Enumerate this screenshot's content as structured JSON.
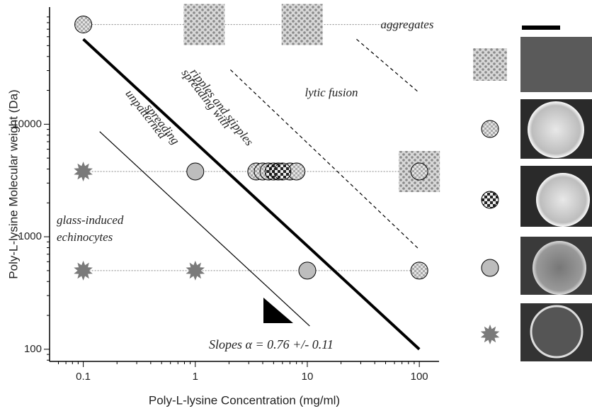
{
  "chart_data": {
    "type": "scatter",
    "x_label": "Poly-L-lysine Concentration (mg/ml)",
    "y_label": "Poly-L-lysine Molecular weight (Da)",
    "xscale": "log",
    "yscale": "log",
    "xlim": [
      0.05,
      150
    ],
    "ylim": [
      78,
      110000
    ],
    "xticks": [
      0.1,
      1,
      10,
      100
    ],
    "yticks": [
      100,
      1000,
      10000
    ],
    "guides": [
      77000,
      3800,
      500
    ],
    "series": [
      {
        "marker": "aggregate-square",
        "color": "#9a9a9a",
        "x": [
          1.2,
          9,
          100
        ],
        "values": [
          77000,
          77000,
          3800
        ]
      },
      {
        "marker": "stipple-circle",
        "color": "#c8c8c8",
        "x": [
          0.1,
          3.5,
          4,
          4.5,
          7,
          8,
          100,
          100
        ],
        "values": [
          77000,
          3800,
          3800,
          3800,
          3800,
          3800,
          3800,
          500
        ]
      },
      {
        "marker": "ripple-circle",
        "color": "#333333",
        "x": [
          5,
          5.5,
          6
        ],
        "values": [
          3800,
          3800,
          3800
        ]
      },
      {
        "marker": "plain-circle",
        "color": "#bdbdbd",
        "x": [
          1,
          10
        ],
        "values": [
          3800,
          500
        ]
      },
      {
        "marker": "star",
        "color": "#7a7a7a",
        "x": [
          0.1,
          0.1,
          1
        ],
        "values": [
          3800,
          500,
          500
        ]
      }
    ],
    "lines": [
      {
        "style": "thick",
        "x": [
          0.1,
          100
        ],
        "values": [
          57000,
          100
        ]
      },
      {
        "style": "thin",
        "x": [
          0.14,
          10.5
        ],
        "values": [
          8600,
          161
        ]
      },
      {
        "style": "dashed",
        "x": [
          2.06,
          100
        ],
        "values": [
          30500,
          770
        ]
      },
      {
        "style": "dashed",
        "x": [
          27.5,
          100
        ],
        "values": [
          57000,
          19000
        ]
      }
    ],
    "annotations": [
      "aggregates",
      "lytic fusion",
      "spreading with",
      "ripples and stipples",
      "unpatterned",
      "spreading",
      "glass-induced",
      "echinocytes",
      "Slopes  α = 0.76 +/- 0.11"
    ]
  }
}
